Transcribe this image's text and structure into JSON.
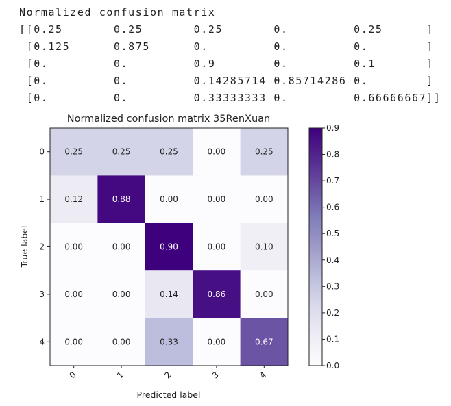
{
  "printout": {
    "heading": "Normalized confusion matrix",
    "lines": [
      "[[0.25       0.25       0.25       0.         0.25      ]",
      " [0.125      0.875      0.         0.         0.        ]",
      " [0.         0.         0.9        0.         0.1       ]",
      " [0.         0.         0.14285714 0.85714286 0.        ]",
      " [0.         0.         0.33333333 0.         0.66666667]]"
    ]
  },
  "chart_data": {
    "type": "heatmap",
    "title": "Normalized confusion matrix 35RenXuan",
    "xlabel": "Predicted label",
    "ylabel": "True label",
    "x_categories": [
      "0",
      "1",
      "2",
      "3",
      "4"
    ],
    "y_categories": [
      "0",
      "1",
      "2",
      "3",
      "4"
    ],
    "values": [
      [
        0.25,
        0.25,
        0.25,
        0.0,
        0.25
      ],
      [
        0.125,
        0.875,
        0.0,
        0.0,
        0.0
      ],
      [
        0.0,
        0.0,
        0.9,
        0.0,
        0.1
      ],
      [
        0.0,
        0.0,
        0.14285714,
        0.85714286,
        0.0
      ],
      [
        0.0,
        0.0,
        0.33333333,
        0.0,
        0.66666667
      ]
    ],
    "cell_labels": [
      [
        "0.25",
        "0.25",
        "0.25",
        "0.00",
        "0.25"
      ],
      [
        "0.12",
        "0.88",
        "0.00",
        "0.00",
        "0.00"
      ],
      [
        "0.00",
        "0.00",
        "0.90",
        "0.00",
        "0.10"
      ],
      [
        "0.00",
        "0.00",
        "0.14",
        "0.86",
        "0.00"
      ],
      [
        "0.00",
        "0.00",
        "0.33",
        "0.00",
        "0.67"
      ]
    ],
    "colormap": "Purples",
    "colormap_stops": [
      "#fcfbfd",
      "#efedf5",
      "#dadaeb",
      "#bcbddc",
      "#9e9ac8",
      "#807dba",
      "#6a51a3",
      "#54278f",
      "#3f007d"
    ],
    "colorbar": {
      "range": [
        0.0,
        0.9
      ],
      "ticks": [
        "0.0",
        "0.1",
        "0.2",
        "0.3",
        "0.4",
        "0.5",
        "0.6",
        "0.7",
        "0.8",
        "0.9"
      ]
    },
    "grid": false
  }
}
